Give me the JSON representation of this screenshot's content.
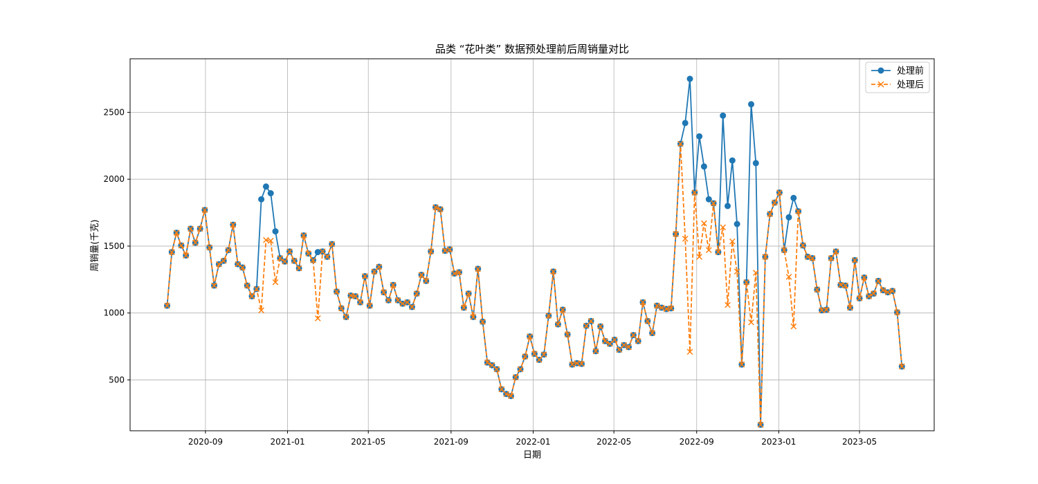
{
  "chart_data": {
    "type": "line",
    "title": "品类 “花叶类” 数据预处理前后周销量对比",
    "xlabel": "日期",
    "ylabel": "周销量(千克)",
    "x_ticks": [
      "2020-09",
      "2021-01",
      "2021-05",
      "2021-09",
      "2022-01",
      "2022-05",
      "2022-09",
      "2023-01",
      "2023-05"
    ],
    "y_ticks": [
      500,
      1000,
      1500,
      2000,
      2500
    ],
    "xlim": [
      "2020-05-12",
      "2023-08-20"
    ],
    "ylim": [
      120,
      2900
    ],
    "grid": true,
    "legend_position": "top-right",
    "start_date": "2020-07-06",
    "week_interval_days": 7,
    "series": [
      {
        "name": "处理前",
        "color": "#1f77b4",
        "line_style": "solid",
        "marker": "circle",
        "values": [
          1055,
          1455,
          1600,
          1505,
          1430,
          1630,
          1525,
          1630,
          1770,
          1490,
          1205,
          1365,
          1390,
          1470,
          1660,
          1365,
          1340,
          1205,
          1125,
          1180,
          1850,
          1945,
          1895,
          1610,
          1410,
          1385,
          1460,
          1390,
          1335,
          1580,
          1445,
          1395,
          1455,
          1460,
          1420,
          1515,
          1160,
          1035,
          970,
          1130,
          1125,
          1080,
          1275,
          1055,
          1310,
          1345,
          1155,
          1095,
          1210,
          1095,
          1070,
          1080,
          1045,
          1145,
          1285,
          1240,
          1460,
          1790,
          1775,
          1465,
          1475,
          1295,
          1305,
          1040,
          1145,
          970,
          1330,
          935,
          630,
          610,
          580,
          430,
          395,
          380,
          520,
          580,
          675,
          825,
          695,
          650,
          690,
          980,
          1310,
          915,
          1025,
          840,
          615,
          625,
          620,
          905,
          940,
          715,
          900,
          790,
          770,
          800,
          725,
          760,
          745,
          835,
          790,
          1080,
          940,
          850,
          1055,
          1040,
          1030,
          1035,
          1590,
          2265,
          2420,
          2750,
          1900,
          2320,
          2095,
          1850,
          1820,
          1455,
          2475,
          1800,
          2140,
          1665,
          615,
          1230,
          2560,
          2120,
          165,
          1420,
          1740,
          1825,
          1900,
          1470,
          1715,
          1860,
          1760,
          1505,
          1420,
          1410,
          1175,
          1020,
          1025,
          1410,
          1460,
          1210,
          1205,
          1040,
          1395,
          1110,
          1265,
          1125,
          1145,
          1240,
          1170,
          1155,
          1165,
          1005,
          600
        ]
      },
      {
        "name": "处理后",
        "color": "#ff7f0e",
        "line_style": "dashed",
        "marker": "x",
        "values": [
          1055,
          1455,
          1600,
          1505,
          1430,
          1630,
          1525,
          1630,
          1770,
          1490,
          1205,
          1365,
          1390,
          1470,
          1660,
          1365,
          1340,
          1205,
          1125,
          1180,
          1020,
          1545,
          1540,
          1230,
          1410,
          1385,
          1460,
          1390,
          1335,
          1580,
          1445,
          1395,
          960,
          1460,
          1420,
          1515,
          1160,
          1035,
          970,
          1130,
          1125,
          1080,
          1275,
          1055,
          1310,
          1345,
          1155,
          1095,
          1210,
          1095,
          1070,
          1080,
          1045,
          1145,
          1285,
          1240,
          1460,
          1790,
          1775,
          1465,
          1475,
          1295,
          1305,
          1040,
          1145,
          970,
          1330,
          935,
          630,
          610,
          580,
          430,
          395,
          380,
          520,
          580,
          675,
          825,
          695,
          650,
          690,
          980,
          1310,
          915,
          1025,
          840,
          615,
          625,
          620,
          905,
          940,
          715,
          900,
          790,
          770,
          800,
          725,
          760,
          745,
          835,
          790,
          1080,
          940,
          850,
          1055,
          1040,
          1030,
          1035,
          1590,
          2265,
          1555,
          710,
          1900,
          1420,
          1670,
          1470,
          1820,
          1455,
          1640,
          1060,
          1535,
          1310,
          615,
          1230,
          930,
          1300,
          165,
          1420,
          1740,
          1825,
          1900,
          1470,
          1270,
          900,
          1760,
          1505,
          1420,
          1410,
          1175,
          1020,
          1025,
          1410,
          1460,
          1210,
          1205,
          1040,
          1395,
          1110,
          1265,
          1125,
          1145,
          1240,
          1170,
          1155,
          1165,
          1005,
          600
        ]
      }
    ]
  }
}
